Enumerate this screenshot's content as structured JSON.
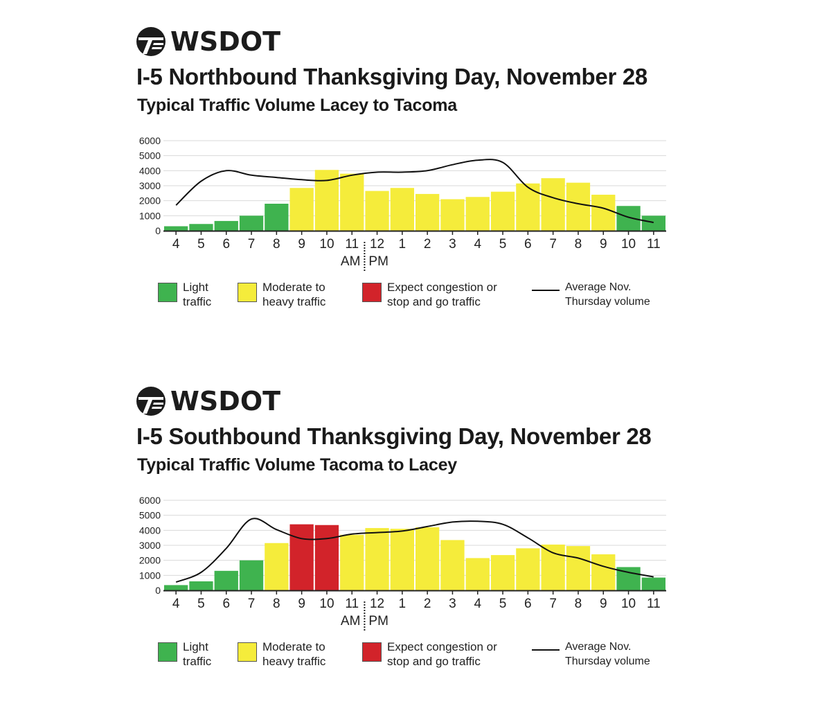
{
  "colors": {
    "light": "#3fb34f",
    "moderate": "#f5ec3b",
    "congestion": "#d2232a",
    "line": "#111111",
    "grid": "#d9d9d9"
  },
  "legend": {
    "light": "Light\ntraffic",
    "moderate": "Moderate to\nheavy traffic",
    "congestion": "Expect congestion or\nstop and go traffic",
    "average": "Average Nov.\nThursday volume"
  },
  "panels": [
    {
      "logo_text": "WSDOT",
      "title": "I-5 Northbound Thanksgiving Day, November 28",
      "subtitle": "Typical Traffic Volume Lacey to Tacoma",
      "am_label": "AM",
      "pm_label": "PM"
    },
    {
      "logo_text": "WSDOT",
      "title": "I-5 Southbound Thanksgiving Day, November 28",
      "subtitle": "Typical Traffic Volume Tacoma to Lacey",
      "am_label": "AM",
      "pm_label": "PM"
    }
  ],
  "chart_data": [
    {
      "type": "bar",
      "title": "I-5 Northbound Thanksgiving Day, November 28",
      "categories": [
        "4",
        "5",
        "6",
        "7",
        "8",
        "9",
        "10",
        "11",
        "12",
        "1",
        "2",
        "3",
        "4",
        "5",
        "6",
        "7",
        "8",
        "9",
        "10",
        "11"
      ],
      "values": [
        300,
        450,
        650,
        1000,
        1800,
        2850,
        4050,
        3800,
        2650,
        2850,
        2450,
        2100,
        2250,
        2600,
        3150,
        3500,
        3200,
        2400,
        1650,
        1000
      ],
      "levels": [
        "light",
        "light",
        "light",
        "light",
        "light",
        "moderate",
        "moderate",
        "moderate",
        "moderate",
        "moderate",
        "moderate",
        "moderate",
        "moderate",
        "moderate",
        "moderate",
        "moderate",
        "moderate",
        "moderate",
        "light",
        "light"
      ],
      "average_line": [
        1700,
        3300,
        4000,
        3700,
        3550,
        3400,
        3350,
        3700,
        3900,
        3900,
        4000,
        4400,
        4700,
        4550,
        2900,
        2200,
        1800,
        1500,
        900,
        550
      ],
      "ylim": [
        0,
        6000
      ],
      "yticks": [
        "0",
        "1000",
        "2000",
        "3000",
        "4000",
        "5000",
        "6000"
      ],
      "grid": true
    },
    {
      "type": "bar",
      "title": "I-5 Southbound Thanksgiving Day, November 28",
      "categories": [
        "4",
        "5",
        "6",
        "7",
        "8",
        "9",
        "10",
        "11",
        "12",
        "1",
        "2",
        "3",
        "4",
        "5",
        "6",
        "7",
        "8",
        "9",
        "10",
        "11"
      ],
      "values": [
        350,
        600,
        1300,
        2000,
        3150,
        4400,
        4350,
        3700,
        4150,
        4100,
        4200,
        3350,
        2150,
        2350,
        2800,
        3050,
        2950,
        2400,
        1550,
        850
      ],
      "levels": [
        "light",
        "light",
        "light",
        "light",
        "moderate",
        "congestion",
        "congestion",
        "moderate",
        "moderate",
        "moderate",
        "moderate",
        "moderate",
        "moderate",
        "moderate",
        "moderate",
        "moderate",
        "moderate",
        "moderate",
        "light",
        "light"
      ],
      "average_line": [
        550,
        1200,
        2800,
        4750,
        4050,
        3450,
        3450,
        3750,
        3850,
        3950,
        4250,
        4550,
        4600,
        4400,
        3500,
        2500,
        2150,
        1600,
        1200,
        900
      ],
      "ylim": [
        0,
        6000
      ],
      "yticks": [
        "0",
        "1000",
        "2000",
        "3000",
        "4000",
        "5000",
        "6000"
      ],
      "grid": true
    }
  ]
}
